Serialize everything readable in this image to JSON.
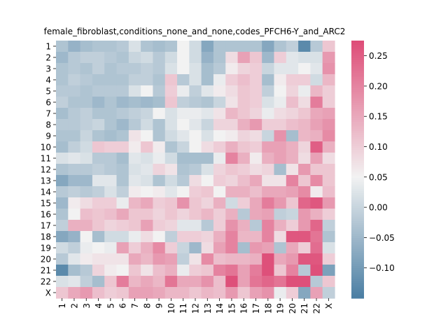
{
  "chart_data": {
    "type": "heatmap",
    "title": "female_fibroblast,conditions_none_and_none,codes_PFCH6-Y_and_ARC2",
    "xlabel": "",
    "ylabel": "",
    "row_labels": [
      "1",
      "2",
      "3",
      "4",
      "5",
      "6",
      "7",
      "8",
      "9",
      "10",
      "11",
      "12",
      "13",
      "14",
      "15",
      "16",
      "17",
      "18",
      "19",
      "20",
      "21",
      "22",
      "X"
    ],
    "col_labels": [
      "1",
      "2",
      "3",
      "4",
      "5",
      "6",
      "7",
      "8",
      "9",
      "10",
      "11",
      "12",
      "13",
      "14",
      "15",
      "16",
      "17",
      "18",
      "19",
      "20",
      "21",
      "22",
      "X"
    ],
    "values": [
      [
        -0.03,
        -0.06,
        -0.04,
        -0.03,
        -0.03,
        -0.02,
        0.02,
        -0.03,
        -0.04,
        -0.03,
        0.05,
        0.01,
        -0.08,
        -0.03,
        -0.03,
        -0.03,
        -0.03,
        -0.08,
        -0.03,
        -0.01,
        -0.13,
        -0.02,
        0.11
      ],
      [
        -0.05,
        -0.02,
        -0.01,
        -0.01,
        -0.02,
        -0.03,
        0.0,
        0.01,
        -0.02,
        0.01,
        0.05,
        0.01,
        -0.06,
        -0.03,
        0.08,
        0.16,
        0.11,
        -0.05,
        0.1,
        0.03,
        0.02,
        0.02,
        0.17
      ],
      [
        -0.03,
        -0.02,
        -0.03,
        -0.01,
        -0.03,
        -0.02,
        -0.02,
        -0.01,
        -0.02,
        0.02,
        0.05,
        0.02,
        -0.04,
        -0.02,
        0.06,
        0.09,
        0.1,
        0.0,
        0.03,
        0.03,
        0.05,
        0.03,
        0.18
      ],
      [
        -0.03,
        -0.01,
        -0.02,
        -0.03,
        -0.03,
        -0.03,
        -0.01,
        -0.01,
        -0.03,
        0.11,
        -0.02,
        0.02,
        -0.04,
        0.04,
        0.1,
        0.12,
        0.1,
        -0.04,
        0.06,
        0.1,
        0.1,
        0.01,
        0.13
      ],
      [
        -0.02,
        -0.02,
        -0.03,
        -0.02,
        -0.02,
        -0.02,
        0.02,
        0.05,
        -0.02,
        0.1,
        0.04,
        -0.01,
        0.03,
        0.06,
        0.08,
        0.11,
        0.1,
        -0.01,
        0.05,
        0.09,
        0.04,
        0.13,
        0.1
      ],
      [
        -0.01,
        -0.03,
        -0.03,
        -0.05,
        -0.03,
        -0.05,
        -0.04,
        -0.05,
        -0.04,
        0.11,
        -0.01,
        -0.02,
        -0.03,
        0.0,
        0.07,
        0.11,
        0.1,
        0.02,
        0.04,
        0.12,
        0.08,
        0.21,
        0.1
      ],
      [
        -0.04,
        -0.02,
        -0.01,
        -0.03,
        -0.03,
        -0.02,
        -0.01,
        0.0,
        0.05,
        0.02,
        0.04,
        0.04,
        0.03,
        0.07,
        0.13,
        0.11,
        0.09,
        0.04,
        0.08,
        0.09,
        0.11,
        0.15,
        0.16
      ],
      [
        -0.02,
        -0.02,
        -0.01,
        0.0,
        -0.03,
        -0.05,
        -0.02,
        0.01,
        -0.03,
        0.02,
        0.05,
        0.03,
        0.0,
        0.09,
        0.09,
        0.14,
        0.17,
        0.1,
        0.1,
        0.12,
        0.13,
        0.16,
        0.18
      ],
      [
        -0.03,
        -0.03,
        0.0,
        -0.03,
        -0.04,
        -0.03,
        0.07,
        0.05,
        -0.03,
        0.01,
        0.03,
        0.05,
        0.02,
        0.05,
        0.06,
        0.09,
        0.08,
        0.0,
        0.18,
        -0.04,
        0.13,
        0.14,
        0.19
      ],
      [
        -0.04,
        -0.01,
        0.01,
        0.11,
        0.1,
        0.1,
        0.06,
        0.11,
        0.06,
        -0.03,
        0.0,
        0.05,
        0.08,
        0.1,
        0.14,
        0.11,
        0.1,
        0.16,
        0.16,
        0.14,
        0.09,
        0.25,
        0.14
      ],
      [
        0.02,
        0.03,
        0.02,
        -0.02,
        -0.02,
        -0.04,
        0.03,
        0.02,
        0.04,
        0.01,
        -0.04,
        -0.04,
        -0.04,
        0.04,
        0.2,
        0.14,
        0.06,
        0.14,
        0.16,
        0.14,
        0.08,
        0.16,
        0.08
      ],
      [
        -0.03,
        -0.02,
        -0.02,
        -0.01,
        -0.02,
        -0.03,
        0.02,
        0.03,
        0.09,
        0.07,
        -0.03,
        -0.02,
        0.02,
        0.09,
        0.11,
        0.1,
        0.08,
        0.09,
        -0.04,
        0.07,
        0.17,
        0.11,
        0.11
      ],
      [
        -0.08,
        -0.05,
        -0.05,
        0.03,
        0.03,
        -0.03,
        0.03,
        0.02,
        -0.03,
        0.01,
        -0.02,
        0.08,
        0.05,
        0.1,
        0.09,
        0.12,
        0.15,
        0.07,
        0.07,
        0.2,
        0.11,
        0.19,
        0.11
      ],
      [
        -0.02,
        -0.01,
        -0.02,
        -0.01,
        0.02,
        -0.01,
        0.06,
        0.05,
        0.06,
        0.03,
        0.05,
        0.1,
        0.11,
        0.05,
        0.14,
        0.14,
        0.12,
        0.15,
        0.15,
        0.16,
        0.19,
        0.06,
        0.12
      ],
      [
        -0.05,
        0.06,
        0.08,
        0.1,
        0.1,
        0.04,
        0.13,
        0.15,
        0.1,
        0.11,
        0.18,
        0.11,
        0.09,
        0.14,
        0.01,
        0.1,
        0.15,
        0.21,
        0.17,
        0.11,
        0.24,
        0.26,
        0.17
      ],
      [
        -0.03,
        0.05,
        0.12,
        0.11,
        0.12,
        0.15,
        0.11,
        0.11,
        0.09,
        0.11,
        0.09,
        0.11,
        0.13,
        0.1,
        0.14,
        -0.02,
        0.15,
        0.16,
        -0.01,
        0.0,
        0.17,
        0.14,
        0.1
      ],
      [
        -0.01,
        0.14,
        0.14,
        0.11,
        0.09,
        0.1,
        0.11,
        0.16,
        0.1,
        0.09,
        0.03,
        0.03,
        -0.02,
        0.1,
        0.18,
        0.14,
        -0.02,
        0.2,
        0.14,
        0.1,
        0.17,
        0.24,
        -0.01
      ],
      [
        -0.08,
        -0.06,
        0.05,
        -0.04,
        0.01,
        0.01,
        0.04,
        0.08,
        0.05,
        -0.01,
        0.1,
        0.1,
        0.09,
        0.14,
        0.2,
        0.13,
        0.13,
        0.2,
        0.08,
        0.26,
        0.26,
        0.22,
        -0.03
      ],
      [
        0.01,
        -0.01,
        0.04,
        0.05,
        0.04,
        0.16,
        0.1,
        0.14,
        0.19,
        0.1,
        0.0,
        -0.05,
        0.08,
        0.16,
        0.2,
        -0.04,
        0.17,
        0.16,
        -0.03,
        0.15,
        0.1,
        0.23,
        0.02
      ],
      [
        -0.02,
        0.03,
        0.06,
        0.07,
        0.07,
        0.07,
        0.15,
        0.13,
        0.17,
        0.16,
        -0.01,
        0.07,
        0.19,
        0.12,
        0.13,
        0.13,
        0.14,
        0.27,
        0.15,
        0.17,
        0.26,
        0.26,
        0.1
      ],
      [
        -0.13,
        -0.04,
        -0.02,
        0.09,
        0.06,
        0.05,
        0.11,
        0.07,
        0.12,
        0.14,
        0.04,
        0.1,
        0.11,
        0.2,
        0.22,
        0.16,
        0.21,
        0.27,
        0.11,
        0.2,
        -0.02,
        0.27,
        -0.09
      ],
      [
        0.02,
        0.03,
        -0.01,
        -0.04,
        0.11,
        0.21,
        0.13,
        0.15,
        0.13,
        0.22,
        0.15,
        0.15,
        0.18,
        0.12,
        0.27,
        0.16,
        0.22,
        0.24,
        0.22,
        0.27,
        0.27,
        -0.02,
        0.11
      ],
      [
        0.11,
        0.15,
        0.17,
        0.12,
        0.1,
        0.11,
        0.16,
        0.16,
        0.15,
        0.13,
        0.13,
        0.11,
        0.13,
        0.12,
        0.17,
        0.11,
        0.16,
        0.18,
        0.04,
        0.1,
        -0.08,
        0.16,
        -0.01
      ]
    ],
    "colorbar": {
      "vmin": -0.15,
      "vmax": 0.275,
      "ticks": [
        "−0.10",
        "−0.05",
        "0.00",
        "0.05",
        "0.10",
        "0.15",
        "0.20",
        "0.25"
      ],
      "tick_values": [
        -0.1,
        -0.05,
        0.0,
        0.05,
        0.1,
        0.15,
        0.2,
        0.25
      ]
    },
    "colormap": {
      "low": "#4a7ea3",
      "mid": "#f2f2f2",
      "high": "#de4c77"
    },
    "grid": false
  }
}
